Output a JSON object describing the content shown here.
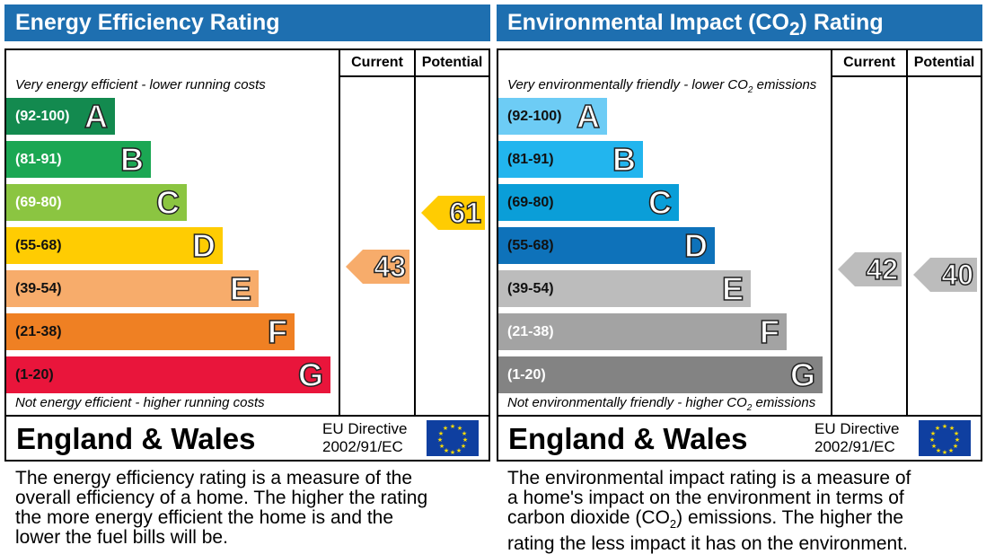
{
  "chart_data": [
    {
      "type": "bar",
      "title": "Energy Efficiency Rating",
      "columns": [
        "Current",
        "Potential"
      ],
      "top_caption": "Very energy efficient - lower running costs",
      "bottom_caption": "Not energy efficient - higher running costs",
      "bands": [
        {
          "letter": "A",
          "range": "(92-100)",
          "color": "#138a4f",
          "text_color": "#ffffff"
        },
        {
          "letter": "B",
          "range": "(81-91)",
          "color": "#1ba753",
          "text_color": "#ffffff"
        },
        {
          "letter": "C",
          "range": "(69-80)",
          "color": "#8bc541",
          "text_color": "#ffffff"
        },
        {
          "letter": "D",
          "range": "(55-68)",
          "color": "#ffcc02",
          "text_color": "#111111"
        },
        {
          "letter": "E",
          "range": "(39-54)",
          "color": "#f7ac6b",
          "text_color": "#111111"
        },
        {
          "letter": "F",
          "range": "(21-38)",
          "color": "#ef8023",
          "text_color": "#111111"
        },
        {
          "letter": "G",
          "range": "(1-20)",
          "color": "#e9153b",
          "text_color": "#111111"
        }
      ],
      "current": {
        "value": 43,
        "band": "E",
        "color": "#f7ac6b"
      },
      "potential": {
        "value": 61,
        "band": "D",
        "color": "#ffcc02"
      },
      "region": "England & Wales",
      "directive": [
        "EU Directive",
        "2002/91/EC"
      ],
      "description": [
        "The energy efficiency rating is a measure of the",
        "overall efficiency of a home. The higher the rating",
        "the more energy efficient the home is and the",
        "lower the fuel bills will be."
      ]
    },
    {
      "type": "bar",
      "title": "Environmental Impact (CO2) Rating",
      "columns": [
        "Current",
        "Potential"
      ],
      "top_caption": "Very environmentally friendly - lower CO2 emissions",
      "bottom_caption": "Not environmentally friendly - higher CO2 emissions",
      "bands": [
        {
          "letter": "A",
          "range": "(92-100)",
          "color": "#6dccf5",
          "text_color": "#111111"
        },
        {
          "letter": "B",
          "range": "(81-91)",
          "color": "#22b5ee",
          "text_color": "#111111"
        },
        {
          "letter": "C",
          "range": "(69-80)",
          "color": "#0a9ed8",
          "text_color": "#111111"
        },
        {
          "letter": "D",
          "range": "(55-68)",
          "color": "#0e72ba",
          "text_color": "#111111"
        },
        {
          "letter": "E",
          "range": "(39-54)",
          "color": "#bcbcbc",
          "text_color": "#111111"
        },
        {
          "letter": "F",
          "range": "(21-38)",
          "color": "#a3a3a3",
          "text_color": "#ffffff"
        },
        {
          "letter": "G",
          "range": "(1-20)",
          "color": "#838383",
          "text_color": "#ffffff"
        }
      ],
      "current": {
        "value": 42,
        "band": "E",
        "color": "#bcbcbc"
      },
      "potential": {
        "value": 40,
        "band": "E",
        "color": "#bcbcbc"
      },
      "region": "England & Wales",
      "directive": [
        "EU Directive",
        "2002/91/EC"
      ],
      "description": [
        "The environmental impact rating is a measure of",
        "a home's impact on the environment in terms of",
        "carbon dioxide (CO2) emissions. The higher the",
        "rating the less impact it has on the environment."
      ]
    }
  ]
}
